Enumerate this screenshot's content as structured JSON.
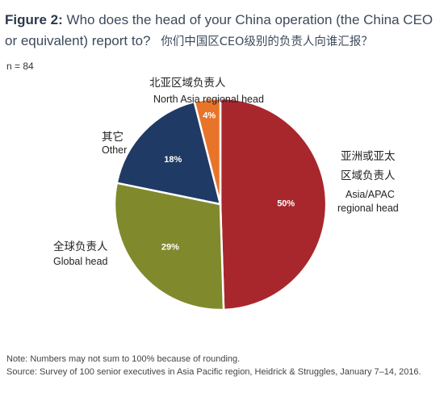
{
  "header": {
    "figure_label": "Figure 2:",
    "title_text": "Who does the head of your China operation (the China CEO or equivalent) report to?",
    "title_cn": "你们中国区CEO级别的负责人向谁汇报？",
    "n_label": "n = 84"
  },
  "chart_data": {
    "type": "pie",
    "title": "Who does the head of your China operation (the China CEO or equivalent) report to?",
    "slices": [
      {
        "label_en": "Asia/APAC regional head",
        "label_cn": "亚洲或亚太区域负责人",
        "value": 50,
        "display": "50%",
        "color": "#a8272c"
      },
      {
        "label_en": "Global head",
        "label_cn": "全球负责人",
        "value": 29,
        "display": "29%",
        "color": "#808a2c"
      },
      {
        "label_en": "Other",
        "label_cn": "其它",
        "value": 18,
        "display": "18%",
        "color": "#1f3a64"
      },
      {
        "label_en": "North Asia regional head",
        "label_cn": "北亚区域负责人",
        "value": 4,
        "display": "4%",
        "color": "#e8742a"
      }
    ]
  },
  "labels": {
    "north_asia_cn": "北亚区域负责人",
    "north_asia_en": "North Asia regional head",
    "other_cn": "其它",
    "other_en": "Other",
    "asia_cn_1": "亚洲或亚太",
    "asia_cn_2": "区域负责人",
    "asia_en_1": "Asia/APAC",
    "asia_en_2": "regional head",
    "global_cn": "全球负责人",
    "global_en": "Global head"
  },
  "footer": {
    "note": "Note: Numbers may not sum to 100% because of rounding.",
    "source": "Source: Survey of 100 senior executives in Asia Pacific region, Heidrick & Struggles, January 7–14, 2016."
  }
}
